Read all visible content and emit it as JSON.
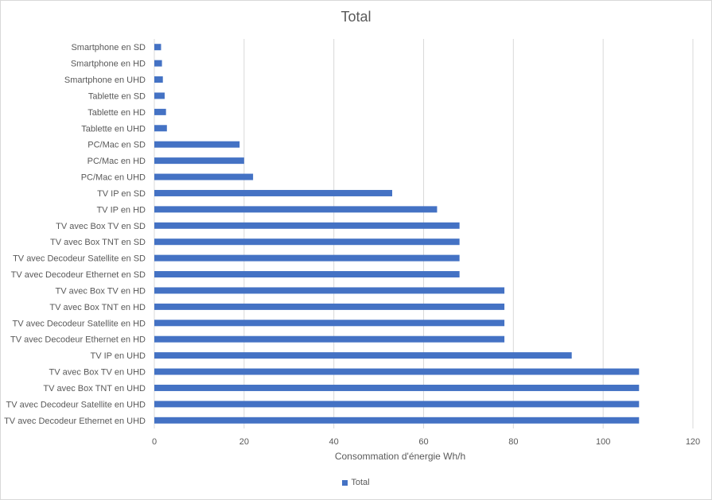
{
  "chart_data": {
    "type": "bar",
    "orientation": "horizontal",
    "title": "Total",
    "xlabel": "Consommation d'énergie Wh/h",
    "ylabel": "",
    "xlim": [
      0,
      120
    ],
    "xticks": [
      0,
      20,
      40,
      60,
      80,
      100,
      120
    ],
    "grid": true,
    "legend_position": "bottom",
    "categories": [
      "Smartphone en SD",
      "Smartphone en HD",
      "Smartphone en UHD",
      "Tablette en SD",
      "Tablette en HD",
      "Tablette en UHD",
      "PC/Mac en SD",
      "PC/Mac en HD",
      "PC/Mac en UHD",
      "TV IP en SD",
      "TV IP en HD",
      "TV avec Box TV en SD",
      "TV avec Box TNT en SD",
      "TV avec Decodeur Satellite en SD",
      "TV avec Decodeur Ethernet en SD",
      "TV avec Box TV en HD",
      "TV avec Box TNT en HD",
      "TV avec Decodeur Satellite en HD",
      "TV avec Decodeur Ethernet en HD",
      "TV IP en UHD",
      "TV avec Box TV en UHD",
      "TV avec Box TNT en UHD",
      "TV avec Decodeur Satellite en UHD",
      "TV avec Decodeur Ethernet en UHD"
    ],
    "series": [
      {
        "name": "Total",
        "color": "#4472c4",
        "values": [
          1.5,
          1.7,
          1.9,
          2.3,
          2.6,
          2.8,
          19,
          20,
          22,
          53,
          63,
          68,
          68,
          68,
          68,
          78,
          78,
          78,
          78,
          93,
          108,
          108,
          108,
          108
        ]
      }
    ]
  }
}
